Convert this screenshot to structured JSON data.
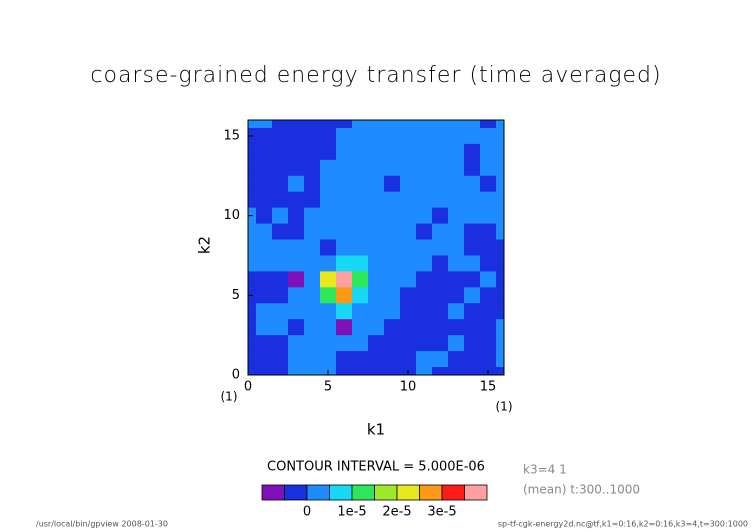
{
  "chart_data": {
    "type": "contour",
    "title": "coarse-grained energy transfer (time averaged)",
    "x_label": "k1",
    "y_label": "k2",
    "x_unit_label": "(1)",
    "y_unit_label": "(1)",
    "xlim": [
      0,
      16
    ],
    "ylim": [
      0,
      16
    ],
    "xticks": [
      0,
      5,
      10,
      15
    ],
    "yticks": [
      0,
      5,
      10,
      15
    ],
    "x": [
      0,
      1,
      2,
      3,
      4,
      5,
      6,
      7,
      8,
      9,
      10,
      11,
      12,
      13,
      14,
      15,
      16
    ],
    "y": [
      16,
      15,
      14,
      13,
      12,
      11,
      10,
      9,
      8,
      7,
      6,
      5,
      4,
      3,
      2,
      1,
      0
    ],
    "z": [
      [
        2e-06,
        2e-06,
        -2e-06,
        -2e-06,
        -2e-06,
        -2e-06,
        -2e-06,
        2e-06,
        2e-06,
        2e-06,
        2e-06,
        2e-06,
        2e-06,
        2e-06,
        2e-06,
        -2e-06,
        2e-06
      ],
      [
        -2e-06,
        -2e-06,
        -2e-06,
        -2e-06,
        -2e-06,
        -2e-06,
        2e-06,
        2e-06,
        2e-06,
        2e-06,
        2e-06,
        2e-06,
        2e-06,
        2e-06,
        2e-06,
        2e-06,
        2e-06
      ],
      [
        -2e-06,
        -2e-06,
        -2e-06,
        -2e-06,
        -2e-06,
        -2e-06,
        2e-06,
        2e-06,
        2e-06,
        2e-06,
        2e-06,
        2e-06,
        2e-06,
        2e-06,
        -2e-06,
        2e-06,
        2e-06
      ],
      [
        -2e-06,
        -2e-06,
        -2e-06,
        -2e-06,
        -2e-06,
        2e-06,
        2e-06,
        2e-06,
        2e-06,
        2e-06,
        2e-06,
        2e-06,
        2e-06,
        2e-06,
        -2e-06,
        2e-06,
        2e-06
      ],
      [
        -2e-06,
        -2e-06,
        -2e-06,
        2e-06,
        -2e-06,
        2e-06,
        2e-06,
        2e-06,
        2e-06,
        -2e-06,
        2e-06,
        2e-06,
        2e-06,
        2e-06,
        2e-06,
        -2e-06,
        2e-06
      ],
      [
        -2e-06,
        -2e-06,
        -2e-06,
        -2e-06,
        -2e-06,
        2e-06,
        2e-06,
        2e-06,
        2e-06,
        2e-06,
        2e-06,
        2e-06,
        2e-06,
        2e-06,
        2e-06,
        2e-06,
        2e-06
      ],
      [
        2e-06,
        -2e-06,
        2e-06,
        -2e-06,
        2e-06,
        2e-06,
        2e-06,
        2e-06,
        2e-06,
        2e-06,
        2e-06,
        2e-06,
        -2e-06,
        2e-06,
        2e-06,
        2e-06,
        2e-06
      ],
      [
        2e-06,
        2e-06,
        -2e-06,
        -2e-06,
        2e-06,
        2e-06,
        2e-06,
        2e-06,
        2e-06,
        2e-06,
        2e-06,
        -2e-06,
        2e-06,
        2e-06,
        -2e-06,
        -2e-06,
        2e-06
      ],
      [
        2e-06,
        2e-06,
        2e-06,
        2e-06,
        2e-06,
        -2e-06,
        2e-06,
        2e-06,
        2e-06,
        2e-06,
        2e-06,
        2e-06,
        2e-06,
        2e-06,
        -2e-06,
        -2e-06,
        -2e-06
      ],
      [
        2e-06,
        2e-06,
        2e-06,
        2e-06,
        2e-06,
        2e-06,
        7e-06,
        7e-06,
        2e-06,
        2e-06,
        2e-06,
        2e-06,
        -2e-06,
        2e-06,
        2e-06,
        -2e-06,
        -2e-06
      ],
      [
        -2e-06,
        -2e-06,
        -2e-06,
        -7e-06,
        2e-06,
        2.2e-05,
        3.7e-05,
        1.2e-05,
        2e-06,
        2e-06,
        2e-06,
        -2e-06,
        -2e-06,
        -2e-06,
        -2e-06,
        2e-06,
        -2e-06
      ],
      [
        -2e-06,
        -2e-06,
        -2e-06,
        2e-06,
        2e-06,
        1.2e-05,
        2.7e-05,
        7e-06,
        2e-06,
        2e-06,
        -2e-06,
        -2e-06,
        -2e-06,
        -2e-06,
        2e-06,
        -2e-06,
        -2e-06
      ],
      [
        -2e-06,
        2e-06,
        2e-06,
        2e-06,
        2e-06,
        2e-06,
        7e-06,
        2e-06,
        2e-06,
        2e-06,
        -2e-06,
        -2e-06,
        -2e-06,
        2e-06,
        -2e-06,
        -2e-06,
        -2e-06
      ],
      [
        -2e-06,
        2e-06,
        2e-06,
        -2e-06,
        2e-06,
        2e-06,
        -7e-06,
        2e-06,
        2e-06,
        -2e-06,
        -2e-06,
        -2e-06,
        -2e-06,
        -2e-06,
        -2e-06,
        -2e-06,
        2e-06
      ],
      [
        -2e-06,
        -2e-06,
        -2e-06,
        2e-06,
        2e-06,
        2e-06,
        2e-06,
        2e-06,
        -2e-06,
        -2e-06,
        -2e-06,
        -2e-06,
        -2e-06,
        2e-06,
        -2e-06,
        -2e-06,
        2e-06
      ],
      [
        -2e-06,
        -2e-06,
        -2e-06,
        2e-06,
        2e-06,
        2e-06,
        -2e-06,
        -2e-06,
        -2e-06,
        -2e-06,
        -2e-06,
        2e-06,
        2e-06,
        -2e-06,
        -2e-06,
        -2e-06,
        2e-06
      ],
      [
        -2e-06,
        -2e-06,
        -2e-06,
        2e-06,
        2e-06,
        2e-06,
        -2e-06,
        -2e-06,
        -2e-06,
        -2e-06,
        -2e-06,
        2e-06,
        -2e-06,
        -2e-06,
        -2e-06,
        -2e-06,
        -2e-06
      ]
    ],
    "levels": [
      -5e-06,
      0,
      5e-06,
      1e-05,
      1.5e-05,
      2e-05,
      2.5e-05,
      3e-05,
      3.5e-05
    ],
    "colors": [
      "#7f10b8",
      "#1a2fe0",
      "#1e8cff",
      "#18d8f8",
      "#2ee65a",
      "#9ee82a",
      "#e8e81c",
      "#ff9a18",
      "#ff1a1a",
      "#ffa0a0"
    ],
    "colorbar_ticks": [
      0,
      {
        "value": 1e-05,
        "label": "1e-5"
      },
      {
        "value": 2e-05,
        "label": "2e-5"
      },
      {
        "value": 3e-05,
        "label": "3e-5"
      }
    ],
    "contour_interval_label": "CONTOUR INTERVAL = 5.000E-06",
    "annotations": [
      "k3=4 1",
      "(mean) t:300..1000"
    ],
    "footer_left": "/usr/local/bin/gpview  2008-01-30",
    "footer_right": "sp-tf-cgk-energy2d.nc@tf,k1=0:16,k2=0:16,k3=4,t=300:1000"
  }
}
